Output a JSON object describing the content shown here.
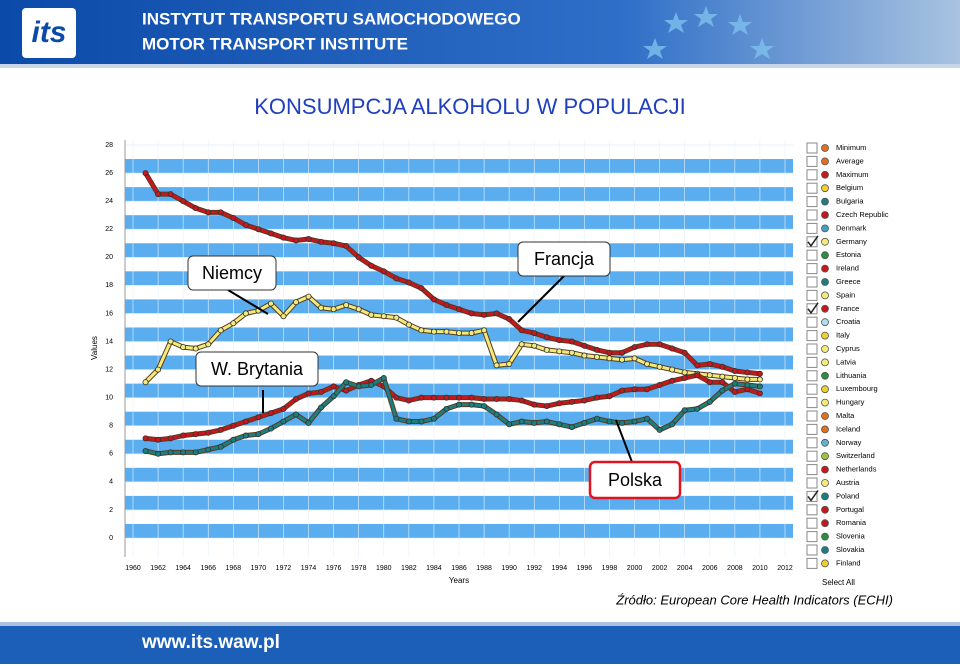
{
  "header": {
    "title": "INSTYTUT TRANSPORTU SAMOCHODOWEGO",
    "subtitle": "MOTOR TRANSPORT INSTITUTE",
    "logo": "its"
  },
  "chart_data": {
    "type": "line",
    "title": "KONSUMPCJA  ALKOHOLU  W  POPULACJI",
    "x_label": "Years",
    "y_label": "Values",
    "x": [
      1961,
      1962,
      1963,
      1964,
      1965,
      1966,
      1967,
      1968,
      1969,
      1970,
      1971,
      1972,
      1973,
      1974,
      1975,
      1976,
      1977,
      1978,
      1979,
      1980,
      1981,
      1982,
      1983,
      1984,
      1985,
      1986,
      1987,
      1988,
      1989,
      1990,
      1991,
      1992,
      1993,
      1994,
      1995,
      1996,
      1997,
      1998,
      1999,
      2000,
      2001,
      2002,
      2003,
      2004,
      2005,
      2006,
      2007,
      2008,
      2009,
      2010
    ],
    "xlim": [
      1960,
      2012
    ],
    "xticks": [
      1960,
      1962,
      1964,
      1966,
      1968,
      1970,
      1972,
      1974,
      1976,
      1978,
      1980,
      1982,
      1984,
      1986,
      1988,
      1990,
      1992,
      1994,
      1996,
      1998,
      2000,
      2002,
      2004,
      2006,
      2008,
      2010,
      2012
    ],
    "ylim": [
      0,
      28
    ],
    "yticks": [
      0,
      2,
      4,
      6,
      8,
      10,
      12,
      14,
      16,
      18,
      20,
      22,
      24,
      26,
      28
    ],
    "grid": true,
    "series": [
      {
        "name": "Francja",
        "color": "#c8161d",
        "values": [
          26,
          24.5,
          24.5,
          24,
          23.5,
          23.2,
          23.2,
          22.8,
          22.3,
          22.0,
          21.7,
          21.4,
          21.2,
          21.3,
          21.1,
          21.0,
          20.8,
          20.0,
          19.4,
          19.0,
          18.5,
          18.2,
          17.8,
          17.0,
          16.6,
          16.3,
          16.0,
          15.9,
          16.0,
          15.6,
          14.8,
          14.6,
          14.3,
          14.1,
          14.0,
          13.7,
          13.4,
          13.2,
          13.2,
          13.6,
          13.8,
          13.8,
          13.5,
          13.2,
          12.3,
          12.4,
          12.2,
          11.9,
          11.8,
          11.7
        ]
      },
      {
        "name": "Niemcy",
        "color": "#f4ec7a",
        "values": [
          11.1,
          12,
          14,
          13.6,
          13.5,
          13.8,
          14.8,
          15.3,
          16,
          16.2,
          16.7,
          15.8,
          16.8,
          17.2,
          16.4,
          16.3,
          16.6,
          16.3,
          15.9,
          15.8,
          15.7,
          15.2,
          14.8,
          14.7,
          14.7,
          14.6,
          14.6,
          14.8,
          12.3,
          12.4,
          13.8,
          13.7,
          13.4,
          13.3,
          13.2,
          13.0,
          12.9,
          12.8,
          12.7,
          12.8,
          12.4,
          12.2,
          12.0,
          11.8,
          11.7,
          11.6,
          11.5,
          11.4,
          11.3,
          11.3
        ]
      },
      {
        "name": "W. Brytania",
        "color": "#c8161d",
        "values": [
          7.1,
          7.0,
          7.1,
          7.3,
          7.4,
          7.5,
          7.7,
          8.0,
          8.3,
          8.6,
          8.9,
          9.2,
          9.9,
          10.3,
          10.4,
          10.8,
          10.5,
          10.9,
          11.2,
          10.8,
          10.0,
          9.8,
          10.0,
          10.0,
          10.0,
          10.0,
          10.0,
          9.9,
          9.9,
          9.9,
          9.8,
          9.5,
          9.4,
          9.6,
          9.7,
          9.8,
          10.0,
          10.1,
          10.5,
          10.6,
          10.6,
          10.9,
          11.2,
          11.4,
          11.6,
          11.1,
          11.1,
          10.4,
          10.6,
          10.3
        ]
      },
      {
        "name": "Polska",
        "color": "#1b7f80",
        "values": [
          6.2,
          6.0,
          6.1,
          6.1,
          6.1,
          6.3,
          6.5,
          7.0,
          7.3,
          7.4,
          7.8,
          8.3,
          8.8,
          8.2,
          9.3,
          10.1,
          11.1,
          10.8,
          10.9,
          11.4,
          8.5,
          8.3,
          8.3,
          8.5,
          9.2,
          9.5,
          9.5,
          9.4,
          8.8,
          8.1,
          8.3,
          8.2,
          8.3,
          8.1,
          7.9,
          8.2,
          8.5,
          8.3,
          8.2,
          8.3,
          8.5,
          7.7,
          8.1,
          9.1,
          9.2,
          9.7,
          10.5,
          11.0,
          10.9,
          10.8
        ]
      }
    ]
  },
  "legend": {
    "items": [
      {
        "name": "Minimum",
        "color": "#e07020",
        "checked": false
      },
      {
        "name": "Average",
        "color": "#e07020",
        "checked": false
      },
      {
        "name": "Maximum",
        "color": "#c8161d",
        "checked": false
      },
      {
        "name": "Belgium",
        "color": "#f0d030",
        "checked": false
      },
      {
        "name": "Bulgaria",
        "color": "#1b7f80",
        "checked": false
      },
      {
        "name": "Czech Republic",
        "color": "#c8161d",
        "checked": false
      },
      {
        "name": "Denmark",
        "color": "#40a0c0",
        "checked": false
      },
      {
        "name": "Germany",
        "color": "#f4ec7a",
        "checked": true
      },
      {
        "name": "Estonia",
        "color": "#2a9040",
        "checked": false
      },
      {
        "name": "Ireland",
        "color": "#c8161d",
        "checked": false
      },
      {
        "name": "Greece",
        "color": "#1b7f80",
        "checked": false
      },
      {
        "name": "Spain",
        "color": "#f4ec7a",
        "checked": false
      },
      {
        "name": "France",
        "color": "#c8161d",
        "checked": true
      },
      {
        "name": "Croatia",
        "color": "#b0e0f0",
        "checked": false
      },
      {
        "name": "Italy",
        "color": "#f0d030",
        "checked": false
      },
      {
        "name": "Cyprus",
        "color": "#f4ec7a",
        "checked": false
      },
      {
        "name": "Latvia",
        "color": "#f4ec7a",
        "checked": false
      },
      {
        "name": "Lithuania",
        "color": "#2a9040",
        "checked": false
      },
      {
        "name": "Luxembourg",
        "color": "#f0d030",
        "checked": false
      },
      {
        "name": "Hungary",
        "color": "#f4ec7a",
        "checked": false
      },
      {
        "name": "Malta",
        "color": "#e07020",
        "checked": false
      },
      {
        "name": "Iceland",
        "color": "#e07020",
        "checked": false
      },
      {
        "name": "Norway",
        "color": "#60b0d0",
        "checked": false
      },
      {
        "name": "Switzerland",
        "color": "#a0c040",
        "checked": false
      },
      {
        "name": "Netherlands",
        "color": "#c8161d",
        "checked": false
      },
      {
        "name": "Austria",
        "color": "#f4ec7a",
        "checked": false
      },
      {
        "name": "Poland",
        "color": "#1b7f80",
        "checked": true
      },
      {
        "name": "Portugal",
        "color": "#c8161d",
        "checked": false
      },
      {
        "name": "Romania",
        "color": "#c8161d",
        "checked": false
      },
      {
        "name": "Slovenia",
        "color": "#2a9040",
        "checked": false
      },
      {
        "name": "Slovakia",
        "color": "#1b7f80",
        "checked": false
      },
      {
        "name": "Finland",
        "color": "#f0d030",
        "checked": false
      }
    ],
    "select_all": "Select All"
  },
  "source": "Źródło: European Core Health Indicators (ECHI)",
  "footer": {
    "url": "www.its.waw.pl"
  }
}
